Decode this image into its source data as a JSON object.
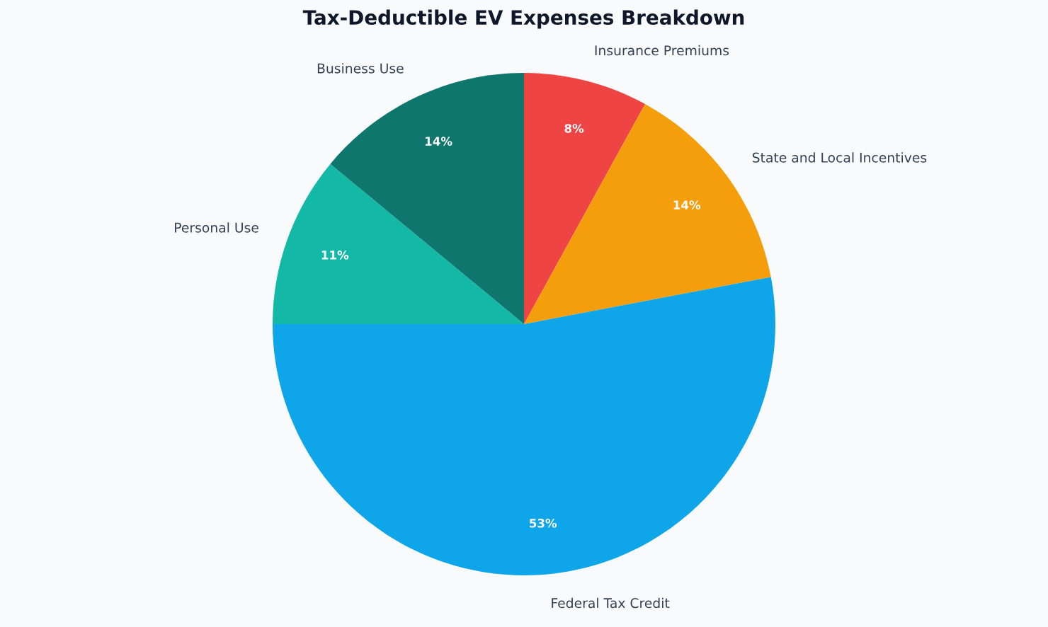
{
  "chart_data": {
    "type": "pie",
    "title": "Tax-Deductible EV Expenses Breakdown",
    "categories": [
      "Insurance Premiums",
      "State and Local Incentives",
      "Federal Tax Credit",
      "Personal Use",
      "Business Use"
    ],
    "values": [
      8,
      14,
      53,
      11,
      14
    ],
    "colors": [
      "#ef4444",
      "#f59e0b",
      "#0ea5e9",
      "#14b8a6",
      "#0f766e"
    ],
    "value_labels": [
      "8%",
      "14%",
      "53%",
      "11%",
      "14%"
    ],
    "legend": false
  }
}
